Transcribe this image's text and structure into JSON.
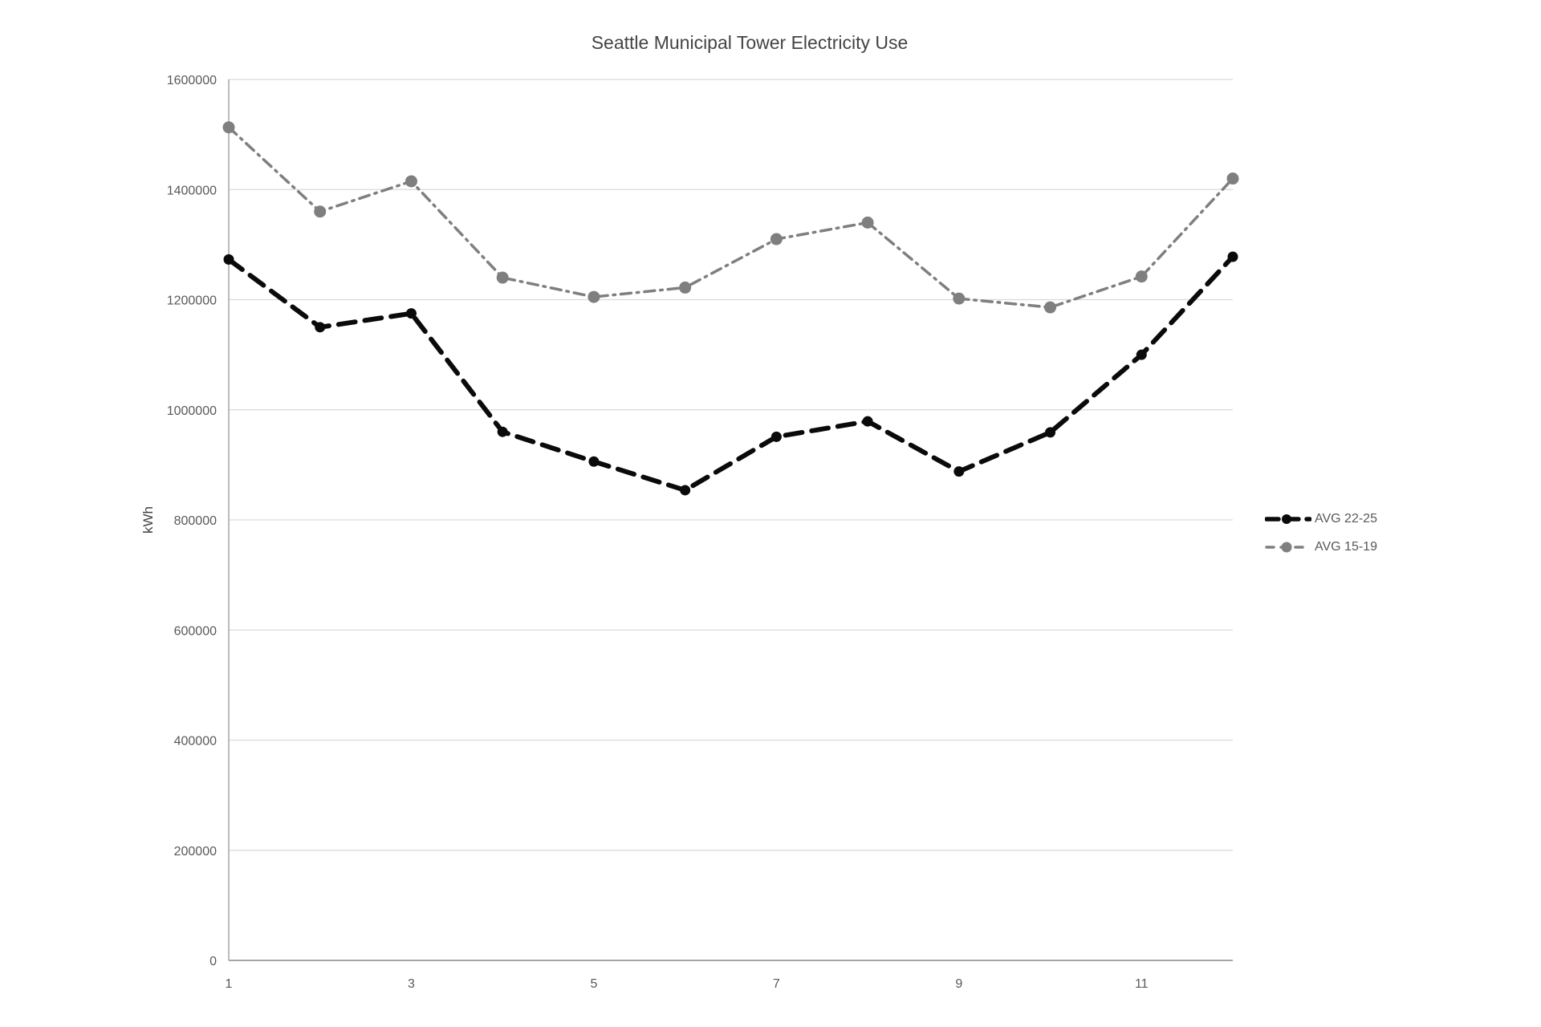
{
  "chart_data": {
    "type": "line",
    "title": "Seattle Municipal Tower Electricity Use",
    "xlabel": "",
    "ylabel": "kWh",
    "categories": [
      1,
      2,
      3,
      4,
      5,
      6,
      7,
      8,
      9,
      10,
      11,
      12
    ],
    "x_tick_labels": [
      "1",
      "3",
      "5",
      "7",
      "9",
      "11"
    ],
    "x_tick_positions": [
      1,
      3,
      5,
      7,
      9,
      11
    ],
    "y_ticks": [
      0,
      200000,
      400000,
      600000,
      800000,
      1000000,
      1200000,
      1400000,
      1600000
    ],
    "ylim": [
      0,
      1600000
    ],
    "grid": true,
    "legend_position": "right",
    "series": [
      {
        "name": "AVG 22-25",
        "color": "#0a0a0a",
        "line_style": "dashed-thick",
        "marker": "circle",
        "values": [
          1273000,
          1150000,
          1175000,
          960000,
          906000,
          854000,
          951000,
          979000,
          888000,
          959000,
          1100000,
          1278000
        ]
      },
      {
        "name": "AVG 15-19",
        "color": "#7f7f7f",
        "line_style": "dash-dot-thin",
        "marker": "circle",
        "values": [
          1513000,
          1360000,
          1415000,
          1240000,
          1205000,
          1222000,
          1310000,
          1340000,
          1202000,
          1186000,
          1242000,
          1420000
        ]
      }
    ],
    "style_colors": {
      "grid": "#d9d9d9",
      "axis": "#a6a6a6",
      "tick_text": "#595959",
      "title_text": "#444444"
    }
  }
}
